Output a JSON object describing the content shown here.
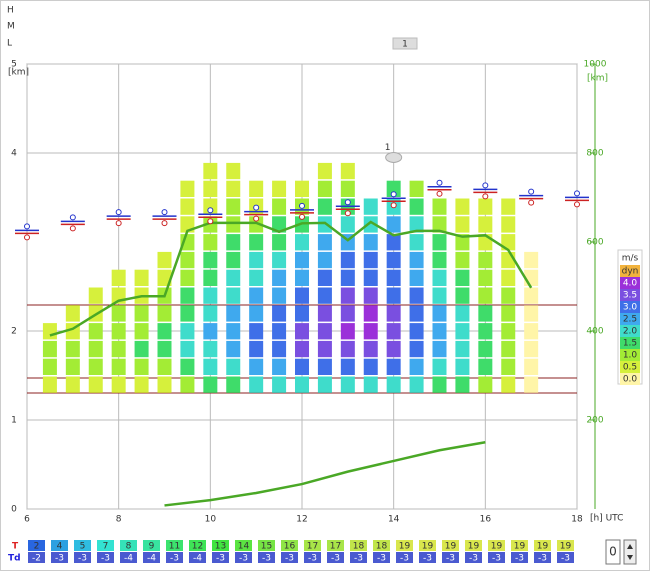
{
  "header": {
    "levels": [
      "H",
      "M",
      "L"
    ],
    "button": "1"
  },
  "chart_data": {
    "type": "thermal",
    "y_label": "[km]",
    "y2_label": "[km]",
    "x_label": "[h] UTC",
    "xlim": [
      6,
      18
    ],
    "xticks": [
      6,
      8,
      10,
      12,
      14,
      16,
      18
    ],
    "ylim": [
      0,
      5
    ],
    "yticks": [
      0,
      1,
      2,
      4,
      5
    ],
    "y2lim": [
      0,
      1000
    ],
    "y2ticks": [
      200,
      400,
      600,
      800,
      1000
    ],
    "grid": true,
    "legend": {
      "title": "m/s",
      "items": [
        {
          "label": "dyn",
          "color": "#f2b33d"
        },
        {
          "value": 4,
          "label": "4.0",
          "color": "#9b30d9"
        },
        {
          "value": 3.5,
          "label": "3.5",
          "color": "#7a4fe0"
        },
        {
          "value": 3,
          "label": "3.0",
          "color": "#3f6fe8"
        },
        {
          "value": 2.5,
          "label": "2.5",
          "color": "#3fa9ee"
        },
        {
          "value": 2,
          "label": "2.0",
          "color": "#3fdccb"
        },
        {
          "value": 1.5,
          "label": "1.5",
          "color": "#3fdc6a"
        },
        {
          "value": 1,
          "label": "1.0",
          "color": "#a3ec35"
        },
        {
          "value": 0.5,
          "label": "0.5",
          "color": "#d6f03c"
        },
        {
          "value": 0,
          "label": "0.0",
          "color": "#fff5a8"
        }
      ]
    },
    "thermals": {
      "x": [
        6.5,
        7,
        7.5,
        8,
        8.5,
        9,
        9.5,
        10,
        10.5,
        11,
        11.5,
        12,
        12.5,
        13,
        13.5,
        14,
        14.5,
        15,
        15.5,
        16,
        16.5,
        17
      ],
      "series": [
        [
          0.5,
          1,
          1,
          0.5
        ],
        [
          0.5,
          1,
          1,
          0.5,
          0.5
        ],
        [
          0.5,
          1,
          1,
          1,
          0.5,
          0.5
        ],
        [
          0.5,
          1,
          1,
          1,
          1,
          0.5,
          0.5
        ],
        [
          0.5,
          1,
          1.5,
          1,
          1,
          0.5,
          0.5
        ],
        [
          0.5,
          1,
          1.5,
          1.5,
          1,
          1,
          0.5,
          0.5
        ],
        [
          1,
          1.5,
          2,
          2,
          1.5,
          1.5,
          1,
          1,
          1,
          0.5,
          0.5,
          0.5
        ],
        [
          1.5,
          2,
          2,
          2.5,
          2,
          2,
          1.5,
          1.5,
          1,
          1,
          0.5,
          0.5,
          0.5
        ],
        [
          1.5,
          2,
          2.5,
          2.5,
          2.5,
          2,
          2,
          1.5,
          1.5,
          1,
          1,
          0.5,
          0.5
        ],
        [
          2,
          2.5,
          3,
          3,
          2.5,
          2.5,
          2,
          2,
          1.5,
          1,
          0.5,
          0.5
        ],
        [
          2,
          2.5,
          3,
          3,
          3,
          2.5,
          2.5,
          2,
          1.5,
          1.5,
          1,
          0.5
        ],
        [
          2,
          3,
          3.5,
          3.5,
          3,
          3,
          2.5,
          2.5,
          2,
          1.5,
          1,
          0.5
        ],
        [
          2,
          3,
          3.5,
          3.5,
          3.5,
          3,
          3,
          2.5,
          2.5,
          2,
          1.5,
          1,
          0.5
        ],
        [
          2,
          3,
          3.5,
          4,
          3.5,
          3.5,
          3,
          3,
          2.5,
          2,
          1.5,
          1,
          0.5
        ],
        [
          2,
          3,
          3.5,
          4,
          4,
          3.5,
          3,
          3,
          2.5,
          2,
          2
        ],
        [
          2,
          3,
          3.5,
          3.5,
          3.5,
          3,
          3,
          3,
          3,
          2.5,
          2,
          1.5
        ],
        [
          2,
          2.5,
          3,
          3,
          3,
          3,
          2.5,
          2.5,
          2,
          2,
          1.5,
          1
        ],
        [
          1.5,
          2,
          2.5,
          2.5,
          2.5,
          2,
          2,
          1.5,
          1.5,
          1,
          1
        ],
        [
          1.5,
          2,
          2,
          2,
          2,
          1.5,
          1.5,
          1,
          1,
          0.5,
          0.5
        ],
        [
          1,
          1.5,
          1.5,
          1.5,
          1.5,
          1,
          1,
          1,
          0.5,
          0.5,
          0.5
        ],
        [
          0.5,
          1,
          1,
          1,
          1,
          1,
          0.5,
          0.5,
          0.5,
          0.5,
          0.5
        ],
        [
          0,
          0,
          0,
          0,
          0,
          0,
          0,
          0
        ]
      ]
    },
    "boundary_line": {
      "color": "#4aa826",
      "axis": "y2",
      "x": [
        6.5,
        7,
        7.5,
        8,
        8.5,
        9,
        9.5,
        10,
        10.5,
        11,
        11.5,
        12,
        12.5,
        13,
        13.5,
        14,
        14.5,
        15,
        15.5,
        16,
        16.5,
        17
      ],
      "values": [
        390,
        405,
        437,
        468,
        478,
        478,
        625,
        643,
        643,
        643,
        623,
        642,
        643,
        604,
        645,
        615,
        625,
        625,
        612,
        615,
        582,
        497
      ]
    },
    "lower_line": {
      "color": "#4aa826",
      "x": [
        9,
        10,
        11,
        12,
        13,
        14,
        15,
        16
      ],
      "values": [
        0.04,
        0.1,
        0.18,
        0.28,
        0.42,
        0.54,
        0.66,
        0.75
      ]
    },
    "cloud_markers": {
      "x": [
        6,
        7,
        8,
        9,
        10,
        11,
        12,
        13,
        14,
        15,
        16,
        17,
        18
      ],
      "values": [
        3.12,
        3.22,
        3.28,
        3.28,
        3.3,
        3.33,
        3.35,
        3.39,
        3.48,
        3.61,
        3.58,
        3.51,
        3.49
      ]
    },
    "marker": {
      "label": "1",
      "x": 14,
      "value": 3.95
    }
  },
  "table": {
    "row_labels": [
      "T",
      "Td"
    ],
    "T": [
      2,
      4,
      5,
      7,
      8,
      9,
      11,
      12,
      13,
      14,
      15,
      16,
      17,
      17,
      18,
      18,
      19,
      19,
      19,
      19,
      19,
      19,
      19,
      19
    ],
    "Td": [
      -2,
      -3,
      -3,
      -3,
      -4,
      -4,
      -3,
      -4,
      -3,
      -3,
      -3,
      -3,
      -3,
      -3,
      -3,
      -3,
      -3,
      -3,
      -3,
      -3,
      -3,
      -3,
      -3,
      -3
    ]
  },
  "spinner": {
    "value": 0
  }
}
